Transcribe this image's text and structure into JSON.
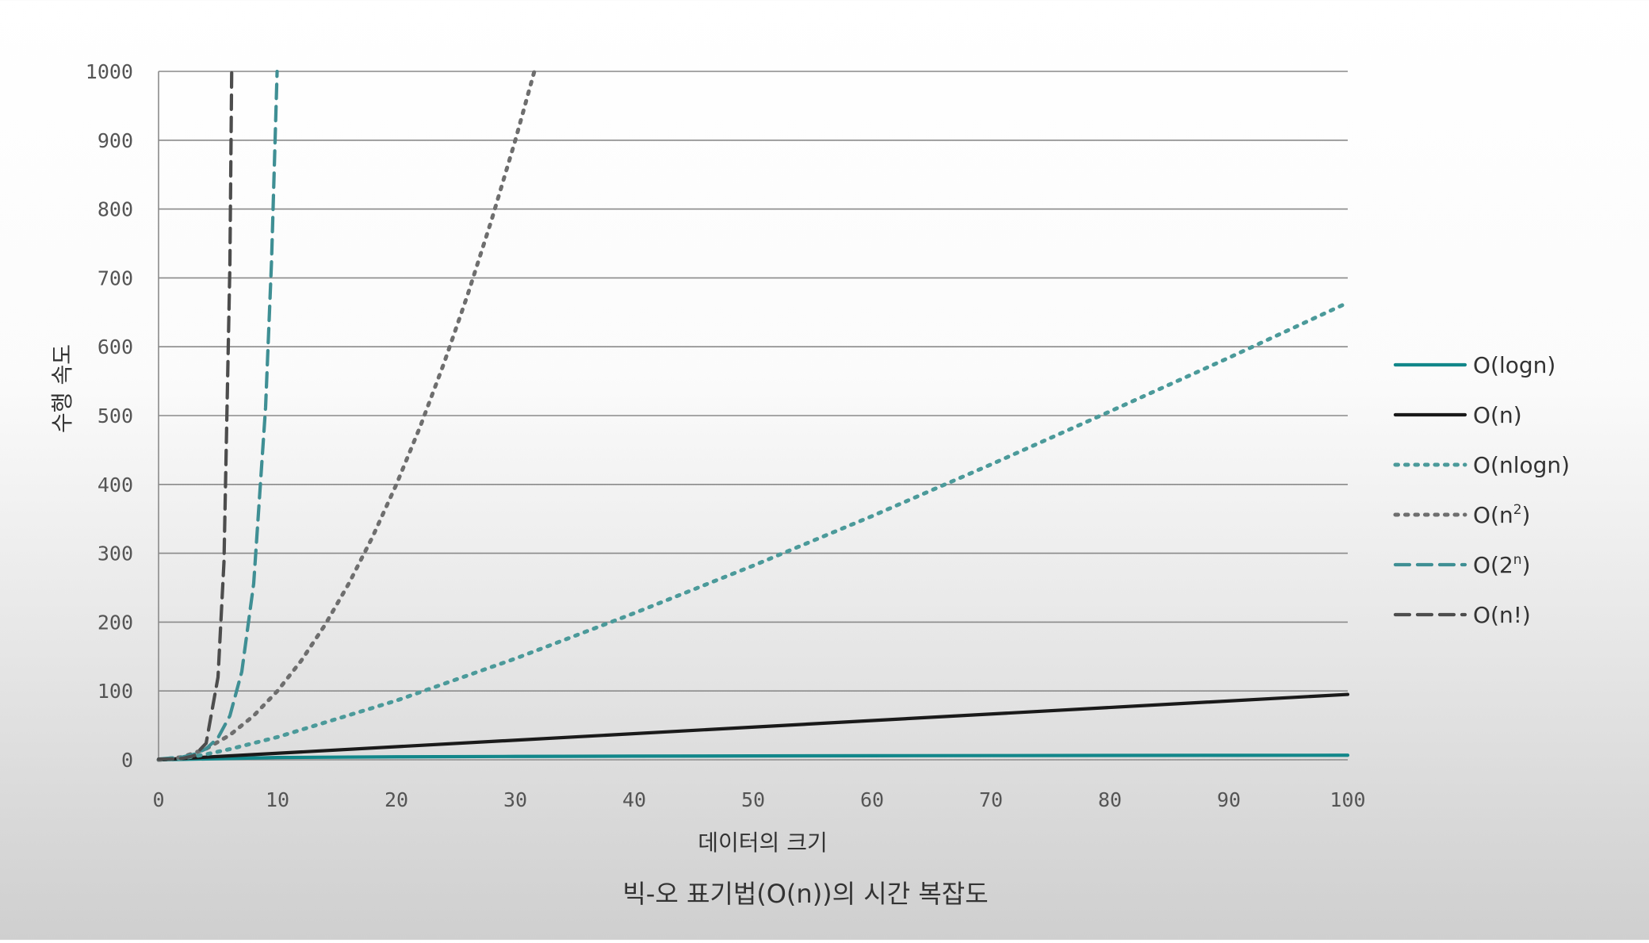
{
  "chart_data": {
    "type": "line",
    "title": "",
    "caption": "빅-오 표기법(O(n))의 시간 복잡도",
    "xlabel": "데이터의 크기",
    "ylabel": "수행 속도",
    "xlim": [
      0,
      100
    ],
    "ylim": [
      0,
      1000
    ],
    "xticks": [
      0,
      10,
      20,
      30,
      40,
      50,
      60,
      70,
      80,
      90,
      100
    ],
    "yticks": [
      0,
      100,
      200,
      300,
      400,
      500,
      600,
      700,
      800,
      900,
      1000
    ],
    "grid": "horizontal",
    "legend_position": "right",
    "series": [
      {
        "name": "O(logn)",
        "label_base": "O(logn)",
        "label_sup": "",
        "label_tail": "",
        "color": "#12878a",
        "style": "solid",
        "points": [
          [
            0,
            0
          ],
          [
            10,
            3.3
          ],
          [
            20,
            4.3
          ],
          [
            30,
            4.9
          ],
          [
            40,
            5.3
          ],
          [
            50,
            5.6
          ],
          [
            60,
            5.9
          ],
          [
            70,
            6.1
          ],
          [
            80,
            6.3
          ],
          [
            90,
            6.5
          ],
          [
            100,
            6.6
          ]
        ]
      },
      {
        "name": "O(n)",
        "label_base": "O(n)",
        "label_sup": "",
        "label_tail": "",
        "color": "#1a1a1a",
        "style": "solid",
        "points": [
          [
            0,
            0
          ],
          [
            100,
            95
          ]
        ]
      },
      {
        "name": "O(nlogn)",
        "label_base": "O(nlogn)",
        "label_sup": "",
        "label_tail": "",
        "color": "#4b9a9a",
        "style": "dotted",
        "points": [
          [
            0,
            0
          ],
          [
            2,
            2
          ],
          [
            4,
            8
          ],
          [
            6,
            15.5
          ],
          [
            10,
            33
          ],
          [
            20,
            86
          ],
          [
            30,
            147
          ],
          [
            40,
            213
          ],
          [
            50,
            282
          ],
          [
            60,
            354
          ],
          [
            70,
            429
          ],
          [
            80,
            506
          ],
          [
            90,
            584
          ],
          [
            100,
            664
          ]
        ]
      },
      {
        "name": "O(n²)",
        "label_base": "O(n",
        "label_sup": "2",
        "label_tail": ")",
        "color": "#6e6e6e",
        "style": "dotted",
        "points": [
          [
            0,
            0
          ],
          [
            2,
            4
          ],
          [
            4,
            16
          ],
          [
            6,
            36
          ],
          [
            8,
            64
          ],
          [
            10,
            100
          ],
          [
            12,
            144
          ],
          [
            14,
            196
          ],
          [
            16,
            256
          ],
          [
            18,
            324
          ],
          [
            20,
            400
          ],
          [
            22,
            484
          ],
          [
            24,
            576
          ],
          [
            26,
            676
          ],
          [
            28,
            784
          ],
          [
            30,
            900
          ],
          [
            31.6,
            1000
          ]
        ]
      },
      {
        "name": "O(2ⁿ)",
        "label_base": "O(2",
        "label_sup": "n",
        "label_tail": ")",
        "color": "#3f8f94",
        "style": "dashed",
        "points": [
          [
            0,
            1
          ],
          [
            2,
            4
          ],
          [
            3,
            8
          ],
          [
            4,
            16
          ],
          [
            5,
            32
          ],
          [
            6,
            64
          ],
          [
            7,
            128
          ],
          [
            8,
            256
          ],
          [
            9,
            512
          ],
          [
            9.5,
            724
          ],
          [
            9.97,
            1000
          ]
        ]
      },
      {
        "name": "O(n!)",
        "label_base": "O(n!)",
        "label_sup": "",
        "label_tail": "",
        "color": "#4d4d4d",
        "style": "dashed",
        "points": [
          [
            0,
            1
          ],
          [
            1,
            1
          ],
          [
            2,
            2
          ],
          [
            3,
            6
          ],
          [
            4,
            24
          ],
          [
            5,
            120
          ],
          [
            5.5,
            287
          ],
          [
            6,
            720
          ],
          [
            6.15,
            1000
          ]
        ]
      }
    ]
  }
}
